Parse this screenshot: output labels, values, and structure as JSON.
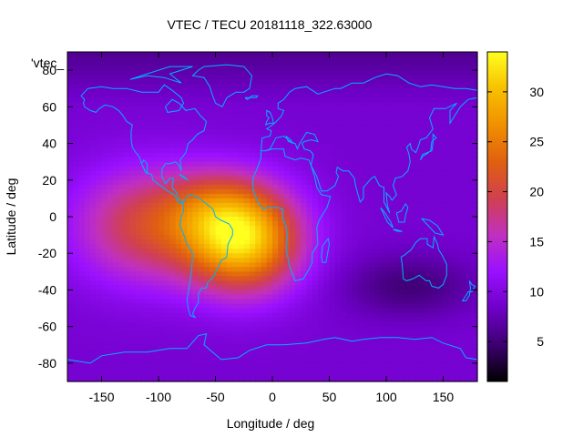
{
  "chart_data": {
    "type": "heatmap",
    "title": "VTEC / TECU 20181118_322.63000",
    "xlabel": "Longitude / deg",
    "ylabel": "Latitude / deg",
    "xlim": [
      -180,
      180
    ],
    "ylim": [
      -90,
      90
    ],
    "xticks": [
      -150,
      -100,
      -50,
      0,
      50,
      100,
      150
    ],
    "yticks": [
      -80,
      -60,
      -40,
      -20,
      0,
      20,
      40,
      60,
      80
    ],
    "legend_entry": "'vtec_",
    "colorbar": {
      "range": [
        1,
        34
      ],
      "ticks": [
        5,
        10,
        15,
        20,
        25,
        30
      ],
      "palette": [
        "#000000",
        "#3d0070",
        "#6f00c8",
        "#9a10ff",
        "#c030c0",
        "#d04050",
        "#e06010",
        "#f09000",
        "#f8c000",
        "#ffff20"
      ]
    },
    "field": {
      "background_tecu": 9,
      "polar_north_tecu": 6,
      "anomalies": [
        {
          "lon": -25,
          "lat": -12,
          "sigma_lon": 35,
          "sigma_lat": 20,
          "amplitude_tecu": 22
        },
        {
          "lon": -110,
          "lat": -5,
          "sigma_lon": 45,
          "sigma_lat": 22,
          "amplitude_tecu": 11
        },
        {
          "lon": -55,
          "lat": 5,
          "sigma_lon": 30,
          "sigma_lat": 15,
          "amplitude_tecu": 5
        },
        {
          "lon": 120,
          "lat": -38,
          "sigma_lon": 40,
          "sigma_lat": 12,
          "amplitude_tecu": -4
        }
      ]
    }
  }
}
